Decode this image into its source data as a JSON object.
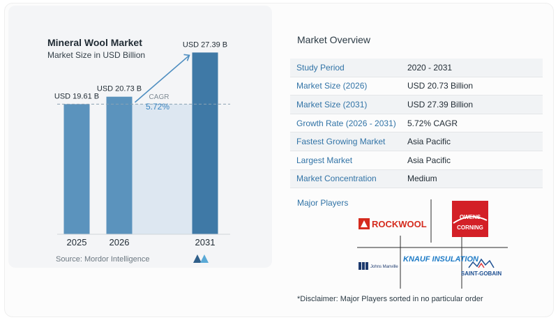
{
  "chart": {
    "title": "Mineral Wool Market",
    "subtitle": "Market Size in USD Billion",
    "source": "Source:  Mordor Intelligence",
    "cagr_label": "CAGR",
    "cagr_value": "5.72%"
  },
  "chart_data": {
    "type": "bar",
    "title": "Mineral Wool Market",
    "subtitle": "Market Size in USD Billion",
    "categories": [
      "2025",
      "2026",
      "2031"
    ],
    "values": [
      19.61,
      20.73,
      27.39
    ],
    "data_labels": [
      "USD 19.61 B",
      "USD 20.73 B",
      "USD 27.39 B"
    ],
    "ylim": [
      0,
      29
    ],
    "grid": false,
    "annotation": {
      "text": "CAGR 5.72%",
      "from": "2026",
      "to": "2031"
    },
    "colors": {
      "bar": "#5b93bd",
      "bar_dark": "#3f79a6",
      "shade": "#dde7f1",
      "line": "#8aa2b3",
      "arrow": "#4e8ec0"
    }
  },
  "overview": {
    "title": "Market Overview",
    "rows": [
      {
        "label": "Study Period",
        "value": "2020 - 2031"
      },
      {
        "label": "Market Size (2026)",
        "value": "USD 20.73 Billion"
      },
      {
        "label": "Market Size (2031)",
        "value": "USD 27.39 Billion"
      },
      {
        "label": "Growth Rate (2026 - 2031)",
        "value": "5.72% CAGR"
      },
      {
        "label": "Fastest Growing Market",
        "value": "Asia Pacific"
      },
      {
        "label": "Largest Market",
        "value": "Asia Pacific"
      },
      {
        "label": "Market Concentration",
        "value": "Medium"
      }
    ]
  },
  "players": {
    "title": "Major Players",
    "logos": [
      "ROCKWOOL",
      "OWENS CORNING",
      "Johns Manville",
      "KNAUF INSULATION",
      "SAINT-GOBAIN"
    ]
  },
  "disclaimer": "*Disclaimer: Major Players sorted in no particular order"
}
